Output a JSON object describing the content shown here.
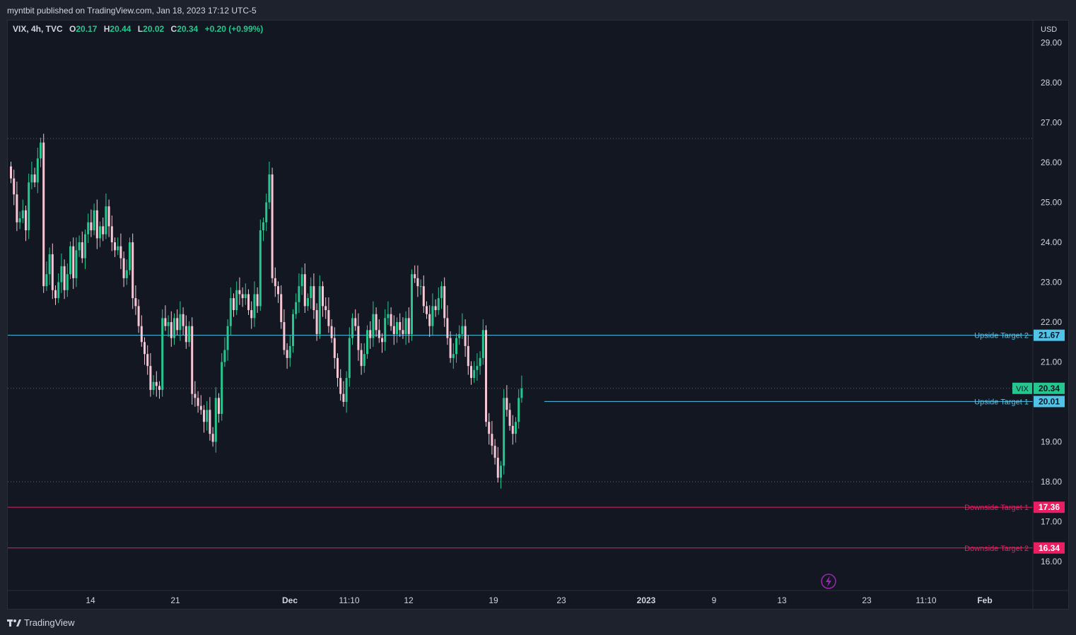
{
  "header": {
    "publisher": "myntbit published on TradingView.com, Jan 18, 2023 17:12 UTC-5"
  },
  "legend": {
    "symbol": "VIX, 4h, TVC",
    "o_label": "O",
    "o_value": "20.17",
    "h_label": "H",
    "h_value": "20.44",
    "l_label": "L",
    "l_value": "20.02",
    "c_label": "C",
    "c_value": "20.34",
    "change": "+0.20 (+0.99%)"
  },
  "footer": {
    "brand": "TradingView"
  },
  "colors": {
    "up": "#26c68f",
    "down": "#f7c6d4",
    "upside": "#4fc3e8",
    "downside": "#e91e63",
    "grid_dot": "#5d606b",
    "axis_text": "#d1d4dc"
  },
  "icons": [
    "lightning-icon",
    "tradingview-logo-icon"
  ],
  "chart_data": {
    "type": "candlestick",
    "currency": "USD",
    "y_ticks": [
      "16.00",
      "17.00",
      "18.00",
      "19.00",
      "20.00",
      "21.00",
      "22.00",
      "23.00",
      "24.00",
      "25.00",
      "26.00",
      "27.00",
      "28.00",
      "29.00"
    ],
    "x_ticks": [
      "14",
      "21",
      "Dec",
      "11:10",
      "12",
      "19",
      "23",
      "2023",
      "9",
      "13",
      "23",
      "11:10",
      "Feb"
    ],
    "dotted_levels": [
      26.6,
      18.0,
      20.34
    ],
    "horizontal_lines": [
      {
        "label": "Upside Target 2",
        "value": "21.67",
        "kind": "upside"
      },
      {
        "label": "Upside Target 1",
        "value": "20.01",
        "kind": "upside"
      },
      {
        "label": "Downside Target 1",
        "value": "17.36",
        "kind": "downside"
      },
      {
        "label": "Downside Target 2",
        "value": "16.34",
        "kind": "downside"
      }
    ],
    "last_price": {
      "label": "VIX",
      "value": "20.34"
    },
    "closes": [
      25.6,
      25.2,
      24.5,
      24.6,
      24.8,
      24.3,
      25.5,
      25.7,
      25.5,
      26.1,
      26.5,
      22.9,
      23.2,
      23.7,
      22.8,
      22.6,
      23.0,
      23.4,
      22.8,
      23.2,
      23.9,
      23.1,
      23.8,
      24.0,
      23.6,
      24.2,
      24.5,
      24.3,
      24.8,
      24.1,
      24.4,
      24.2,
      24.9,
      24.4,
      24.0,
      23.8,
      23.9,
      23.6,
      23.1,
      23.3,
      24.0,
      22.6,
      22.4,
      21.9,
      21.5,
      21.2,
      20.9,
      20.3,
      20.5,
      20.4,
      20.3,
      22.1,
      21.9,
      22.0,
      21.6,
      22.1,
      21.8,
      22.2,
      21.9,
      21.5,
      21.9,
      20.2,
      20.1,
      19.9,
      19.8,
      19.5,
      19.8,
      19.2,
      19.0,
      20.1,
      19.7,
      21.0,
      21.3,
      21.9,
      22.6,
      22.3,
      22.8,
      22.7,
      22.6,
      22.7,
      22.3,
      22.1,
      22.7,
      22.4,
      24.3,
      24.5,
      25.0,
      25.7,
      23.1,
      22.9,
      22.7,
      22.0,
      21.3,
      21.1,
      21.4,
      22.2,
      22.5,
      22.9,
      23.2,
      22.4,
      22.6,
      22.9,
      22.3,
      21.7,
      22.9,
      22.4,
      22.3,
      21.9,
      21.6,
      21.1,
      20.6,
      20.2,
      20.0,
      20.6,
      21.6,
      22.1,
      21.9,
      21.3,
      20.9,
      21.2,
      21.8,
      21.6,
      22.2,
      21.8,
      21.6,
      21.5,
      22.1,
      22.2,
      21.9,
      21.7,
      22.0,
      21.8,
      21.7,
      22.1,
      21.7,
      23.2,
      23.1,
      22.9,
      22.9,
      22.4,
      22.2,
      21.9,
      22.4,
      22.3,
      22.6,
      22.9,
      22.1,
      21.6,
      21.1,
      21.2,
      21.6,
      21.7,
      21.9,
      21.4,
      20.9,
      20.6,
      20.8,
      20.9,
      21.1,
      21.8,
      19.5,
      19.2,
      18.9,
      18.6,
      18.1,
      18.4,
      20.1,
      19.8,
      19.4,
      19.2,
      19.5,
      20.1,
      20.34
    ]
  }
}
